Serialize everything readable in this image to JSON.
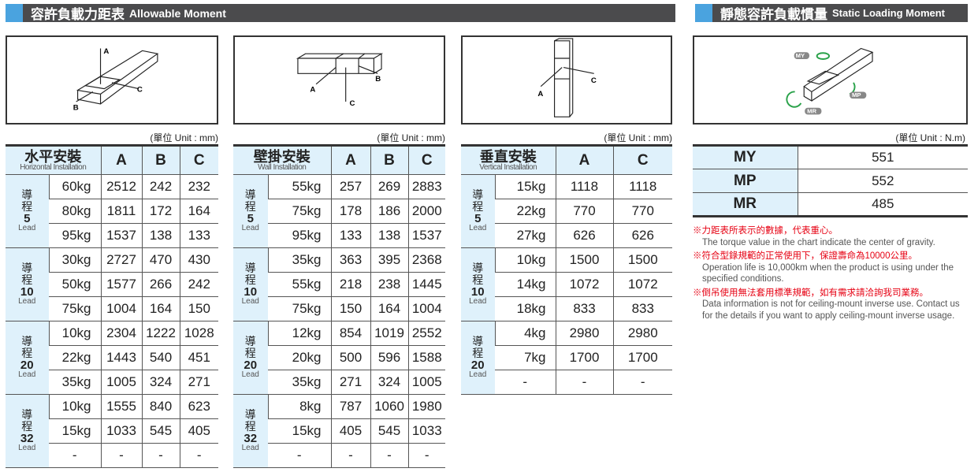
{
  "sections": {
    "moment": {
      "zh": "容許負載力距表",
      "en": "Allowable Moment"
    },
    "static": {
      "zh": "靜態容許負載慣量",
      "en": "Static Loading Moment"
    }
  },
  "diagram_labels": {
    "a": "A",
    "b": "B",
    "c": "C",
    "my": "MY",
    "mp": "MP",
    "mr": "MR"
  },
  "unit_mm": "(單位 Unit : mm)",
  "unit_nm": "(單位 Unit : N.m)",
  "lead_zh1": "導",
  "lead_zh2": "程",
  "lead_en": "Lead",
  "horizontal": {
    "title_zh": "水平安裝",
    "title_en": "Horizontal Installation",
    "cols": [
      "A",
      "B",
      "C"
    ],
    "groups": [
      {
        "lead": "5",
        "rows": [
          [
            "60kg",
            "2512",
            "242",
            "232"
          ],
          [
            "80kg",
            "1811",
            "172",
            "164"
          ],
          [
            "95kg",
            "1537",
            "138",
            "133"
          ]
        ]
      },
      {
        "lead": "10",
        "rows": [
          [
            "30kg",
            "2727",
            "470",
            "430"
          ],
          [
            "50kg",
            "1577",
            "266",
            "242"
          ],
          [
            "75kg",
            "1004",
            "164",
            "150"
          ]
        ]
      },
      {
        "lead": "20",
        "rows": [
          [
            "10kg",
            "2304",
            "1222",
            "1028"
          ],
          [
            "22kg",
            "1443",
            "540",
            "451"
          ],
          [
            "35kg",
            "1005",
            "324",
            "271"
          ]
        ]
      },
      {
        "lead": "32",
        "rows": [
          [
            "10kg",
            "1555",
            "840",
            "623"
          ],
          [
            "15kg",
            "1033",
            "545",
            "405"
          ],
          [
            "-",
            "-",
            "-",
            "-"
          ]
        ]
      }
    ]
  },
  "wall": {
    "title_zh": "壁掛安裝",
    "title_en": "Wall Installation",
    "cols": [
      "A",
      "B",
      "C"
    ],
    "groups": [
      {
        "lead": "5",
        "rows": [
          [
            "55kg",
            "257",
            "269",
            "2883"
          ],
          [
            "75kg",
            "178",
            "186",
            "2000"
          ],
          [
            "95kg",
            "133",
            "138",
            "1537"
          ]
        ]
      },
      {
        "lead": "10",
        "rows": [
          [
            "35kg",
            "363",
            "395",
            "2368"
          ],
          [
            "55kg",
            "218",
            "238",
            "1445"
          ],
          [
            "75kg",
            "150",
            "164",
            "1004"
          ]
        ]
      },
      {
        "lead": "20",
        "rows": [
          [
            "12kg",
            "854",
            "1019",
            "2552"
          ],
          [
            "20kg",
            "500",
            "596",
            "1588"
          ],
          [
            "35kg",
            "271",
            "324",
            "1005"
          ]
        ]
      },
      {
        "lead": "32",
        "rows": [
          [
            "8kg",
            "787",
            "1060",
            "1980"
          ],
          [
            "15kg",
            "405",
            "545",
            "1033"
          ],
          [
            "-",
            "-",
            "-",
            "-"
          ]
        ]
      }
    ]
  },
  "vertical": {
    "title_zh": "垂直安裝",
    "title_en": "Vertical Installation",
    "cols": [
      "A",
      "C"
    ],
    "groups": [
      {
        "lead": "5",
        "rows": [
          [
            "15kg",
            "1118",
            "1118"
          ],
          [
            "22kg",
            "770",
            "770"
          ],
          [
            "27kg",
            "626",
            "626"
          ]
        ]
      },
      {
        "lead": "10",
        "rows": [
          [
            "10kg",
            "1500",
            "1500"
          ],
          [
            "14kg",
            "1072",
            "1072"
          ],
          [
            "18kg",
            "833",
            "833"
          ]
        ]
      },
      {
        "lead": "20",
        "rows": [
          [
            "4kg",
            "2980",
            "2980"
          ],
          [
            "7kg",
            "1700",
            "1700"
          ],
          [
            "-",
            "-",
            "-"
          ]
        ]
      }
    ]
  },
  "static_moment": [
    {
      "label": "MY",
      "value": "551"
    },
    {
      "label": "MP",
      "value": "552"
    },
    {
      "label": "MR",
      "value": "485"
    }
  ],
  "notes": [
    {
      "zh": "※力距表所表示的數據，代表重心。",
      "en": "The torque value in the chart indicate the center of gravity."
    },
    {
      "zh": "※符合型錄規範的正常使用下，保證壽命為10000公里。",
      "en": "Operation life is 10,000km when the product is using under the specified conditions."
    },
    {
      "zh": "※倒吊使用無法套用標準規範，如有需求請洽詢我司業務。",
      "en": "Data information is not for ceiling-mount inverse use. Contact us for the details if you want to apply ceiling-mount inverse usage."
    }
  ],
  "colors": {
    "header_bar": "#4b4b4d",
    "accent": "#4aa3df",
    "cell_bg": "#dff1fb",
    "note_red": "#e60012"
  }
}
